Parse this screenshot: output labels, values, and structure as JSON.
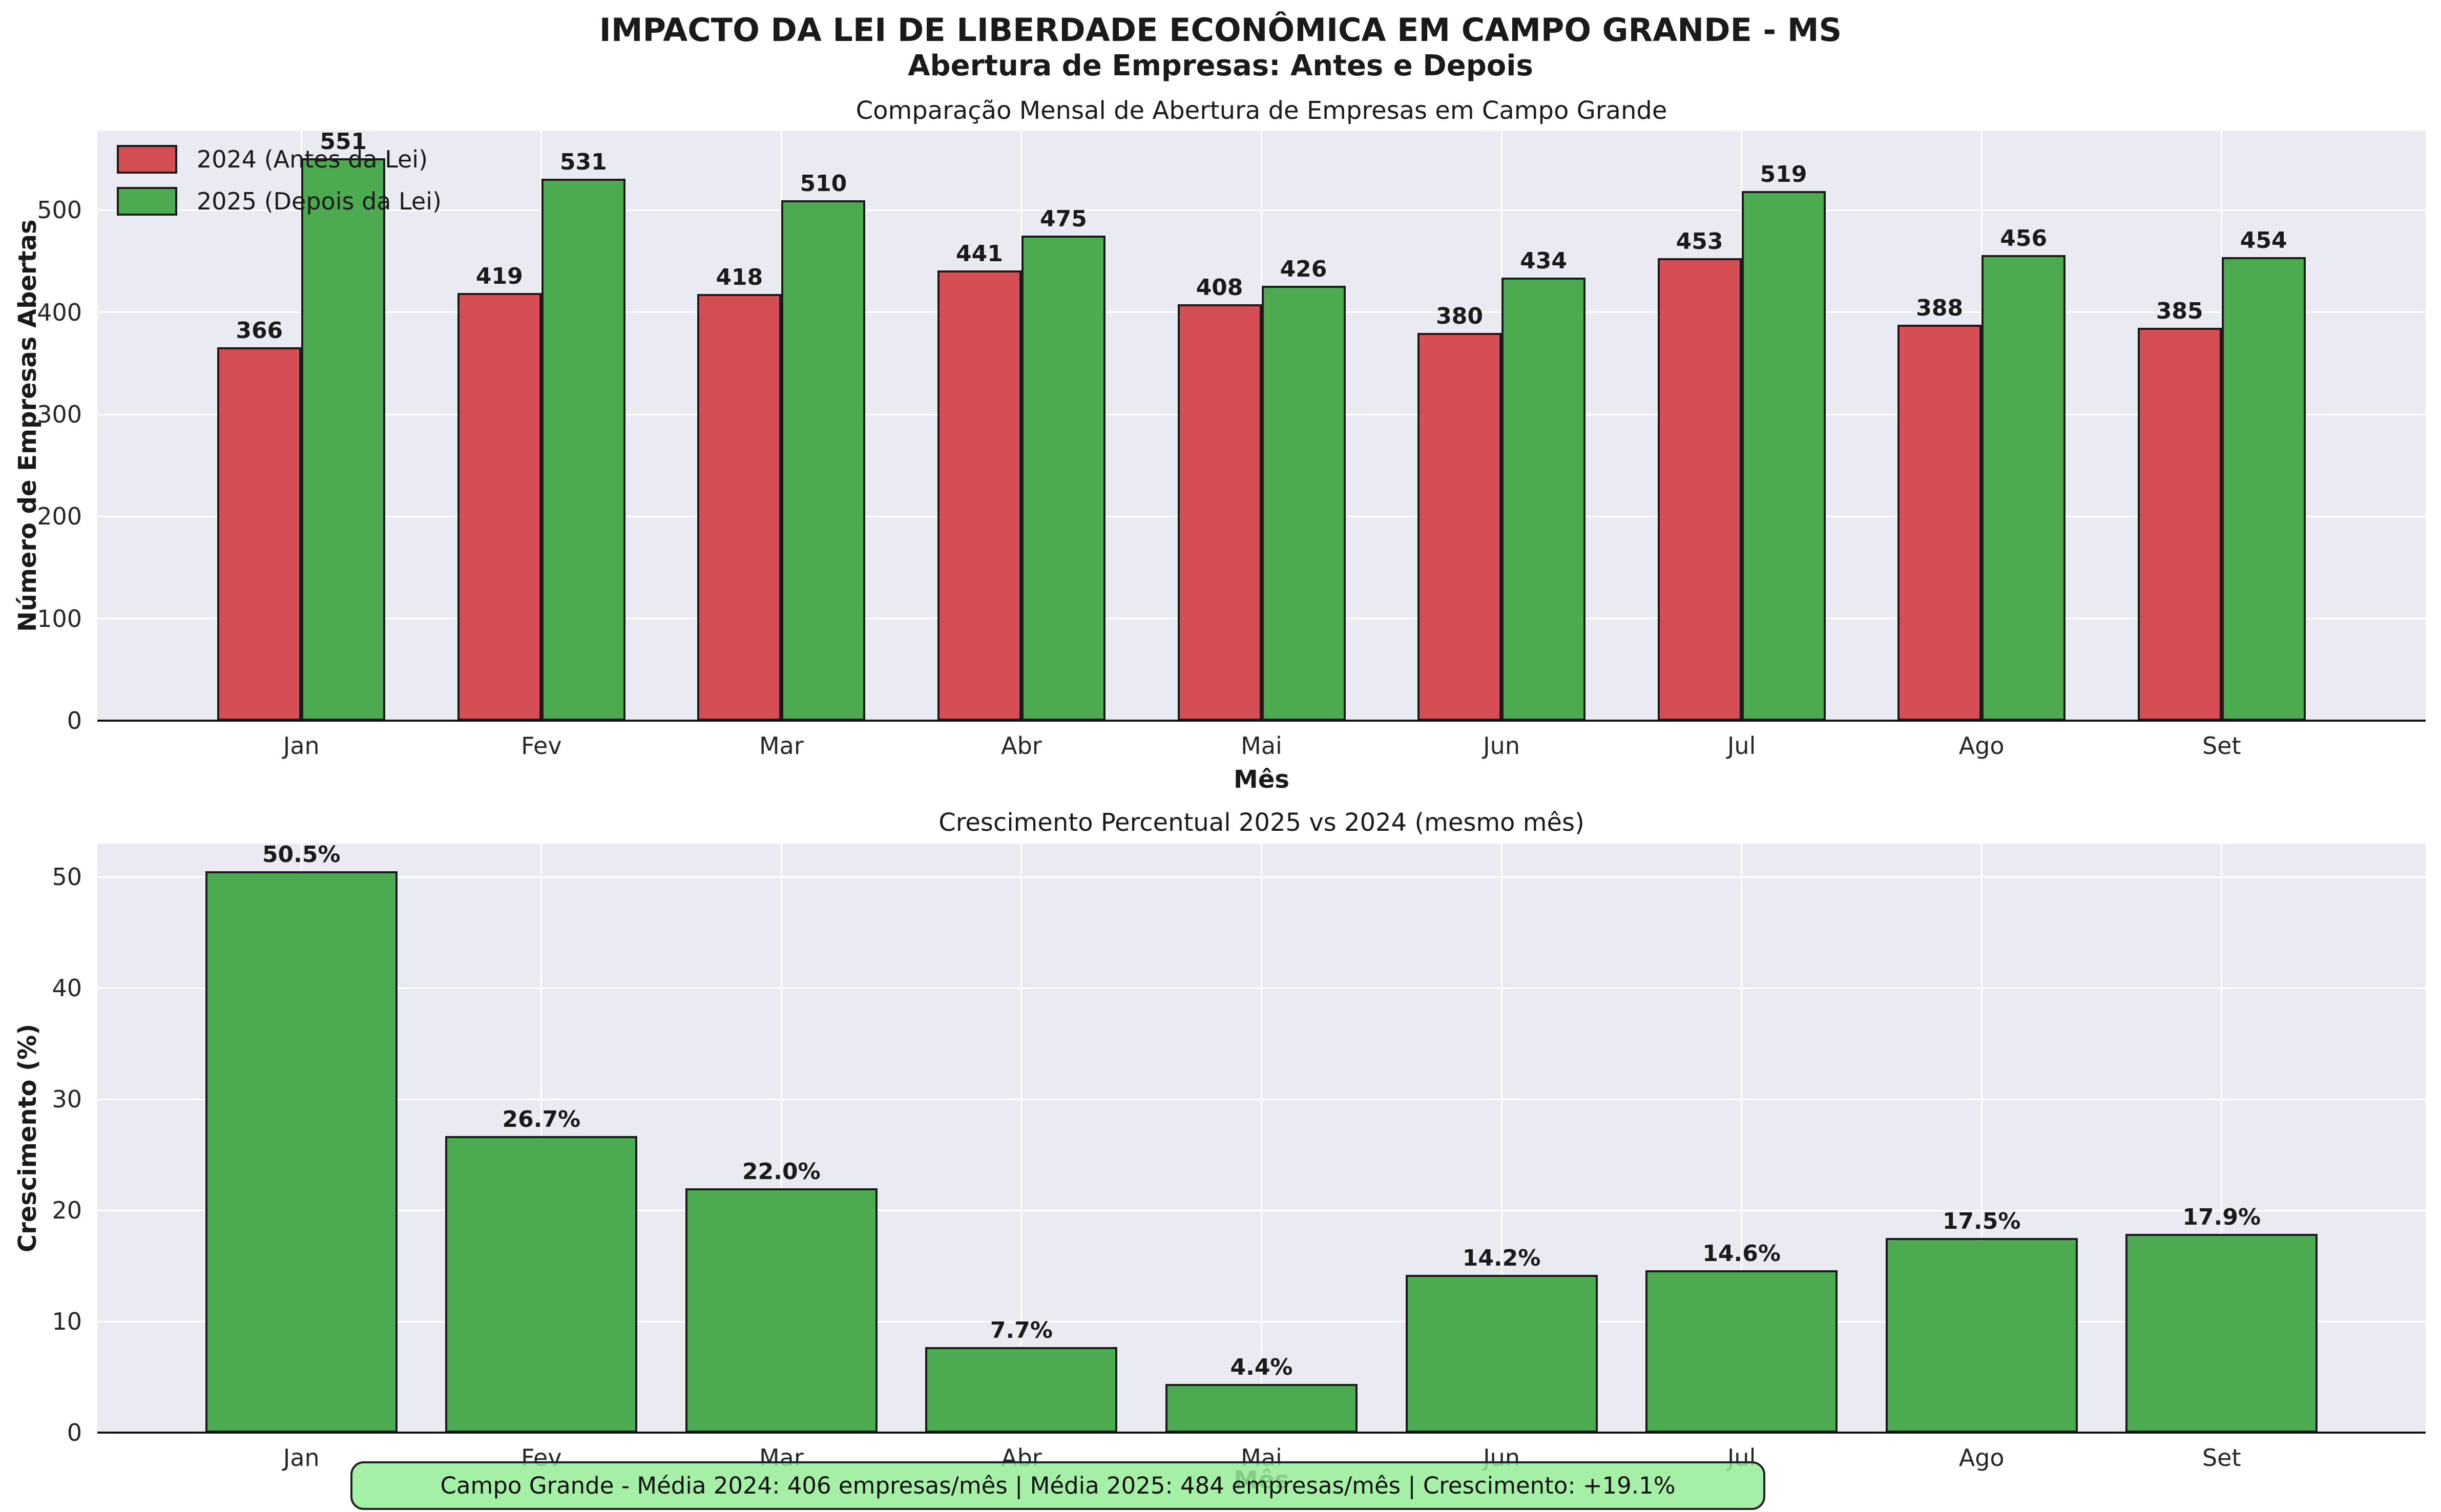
{
  "figure": {
    "title": "IMPACTO DA LEI DE LIBERDADE ECONÔMICA EM CAMPO GRANDE - MS",
    "subtitle": "Abertura de Empresas: Antes e Depois"
  },
  "colors": {
    "red": "#d54e54",
    "green": "#4cab50",
    "plot_background": "#eaeaf2",
    "gridline": "#ffffff",
    "bar_edge": "#1b1b1b",
    "annotation_fill": "#96ec96",
    "annotation_border": "#222222"
  },
  "chart_data": [
    {
      "type": "bar",
      "title": "Comparação Mensal de Abertura de Empresas em Campo Grande",
      "categories": [
        "Jan",
        "Fev",
        "Mar",
        "Abr",
        "Mai",
        "Jun",
        "Jul",
        "Ago",
        "Set"
      ],
      "series": [
        {
          "name": "2024 (Antes da Lei)",
          "color_key": "red",
          "values": [
            366,
            419,
            418,
            441,
            408,
            380,
            453,
            388,
            385
          ]
        },
        {
          "name": "2025 (Depois da Lei)",
          "color_key": "green",
          "values": [
            551,
            531,
            510,
            475,
            426,
            434,
            519,
            456,
            454
          ]
        }
      ],
      "xlabel": "Mês",
      "ylabel": "Número de Empresas Abertas",
      "ylim": [
        0,
        578
      ],
      "yticks": [
        0,
        100,
        200,
        300,
        400,
        500
      ],
      "grid": true,
      "legend_position": "upper left",
      "label_format": "integer"
    },
    {
      "type": "bar",
      "title": "Crescimento Percentual 2025 vs 2024 (mesmo mês)",
      "categories": [
        "Jan",
        "Fev",
        "Mar",
        "Abr",
        "Mai",
        "Jun",
        "Jul",
        "Ago",
        "Set"
      ],
      "values": [
        50.5,
        26.7,
        22.0,
        7.7,
        4.4,
        14.2,
        14.6,
        17.5,
        17.9
      ],
      "color_key": "green",
      "xlabel": "Mês",
      "ylabel": "Crescimento (%)",
      "ylim": [
        0,
        53
      ],
      "yticks": [
        0,
        10,
        20,
        30,
        40,
        50
      ],
      "grid": true,
      "label_format": "percent_1dp"
    }
  ],
  "annotation": "Campo Grande - Média 2024: 406 empresas/mês | Média 2025: 484 empresas/mês | Crescimento: +19.1%"
}
